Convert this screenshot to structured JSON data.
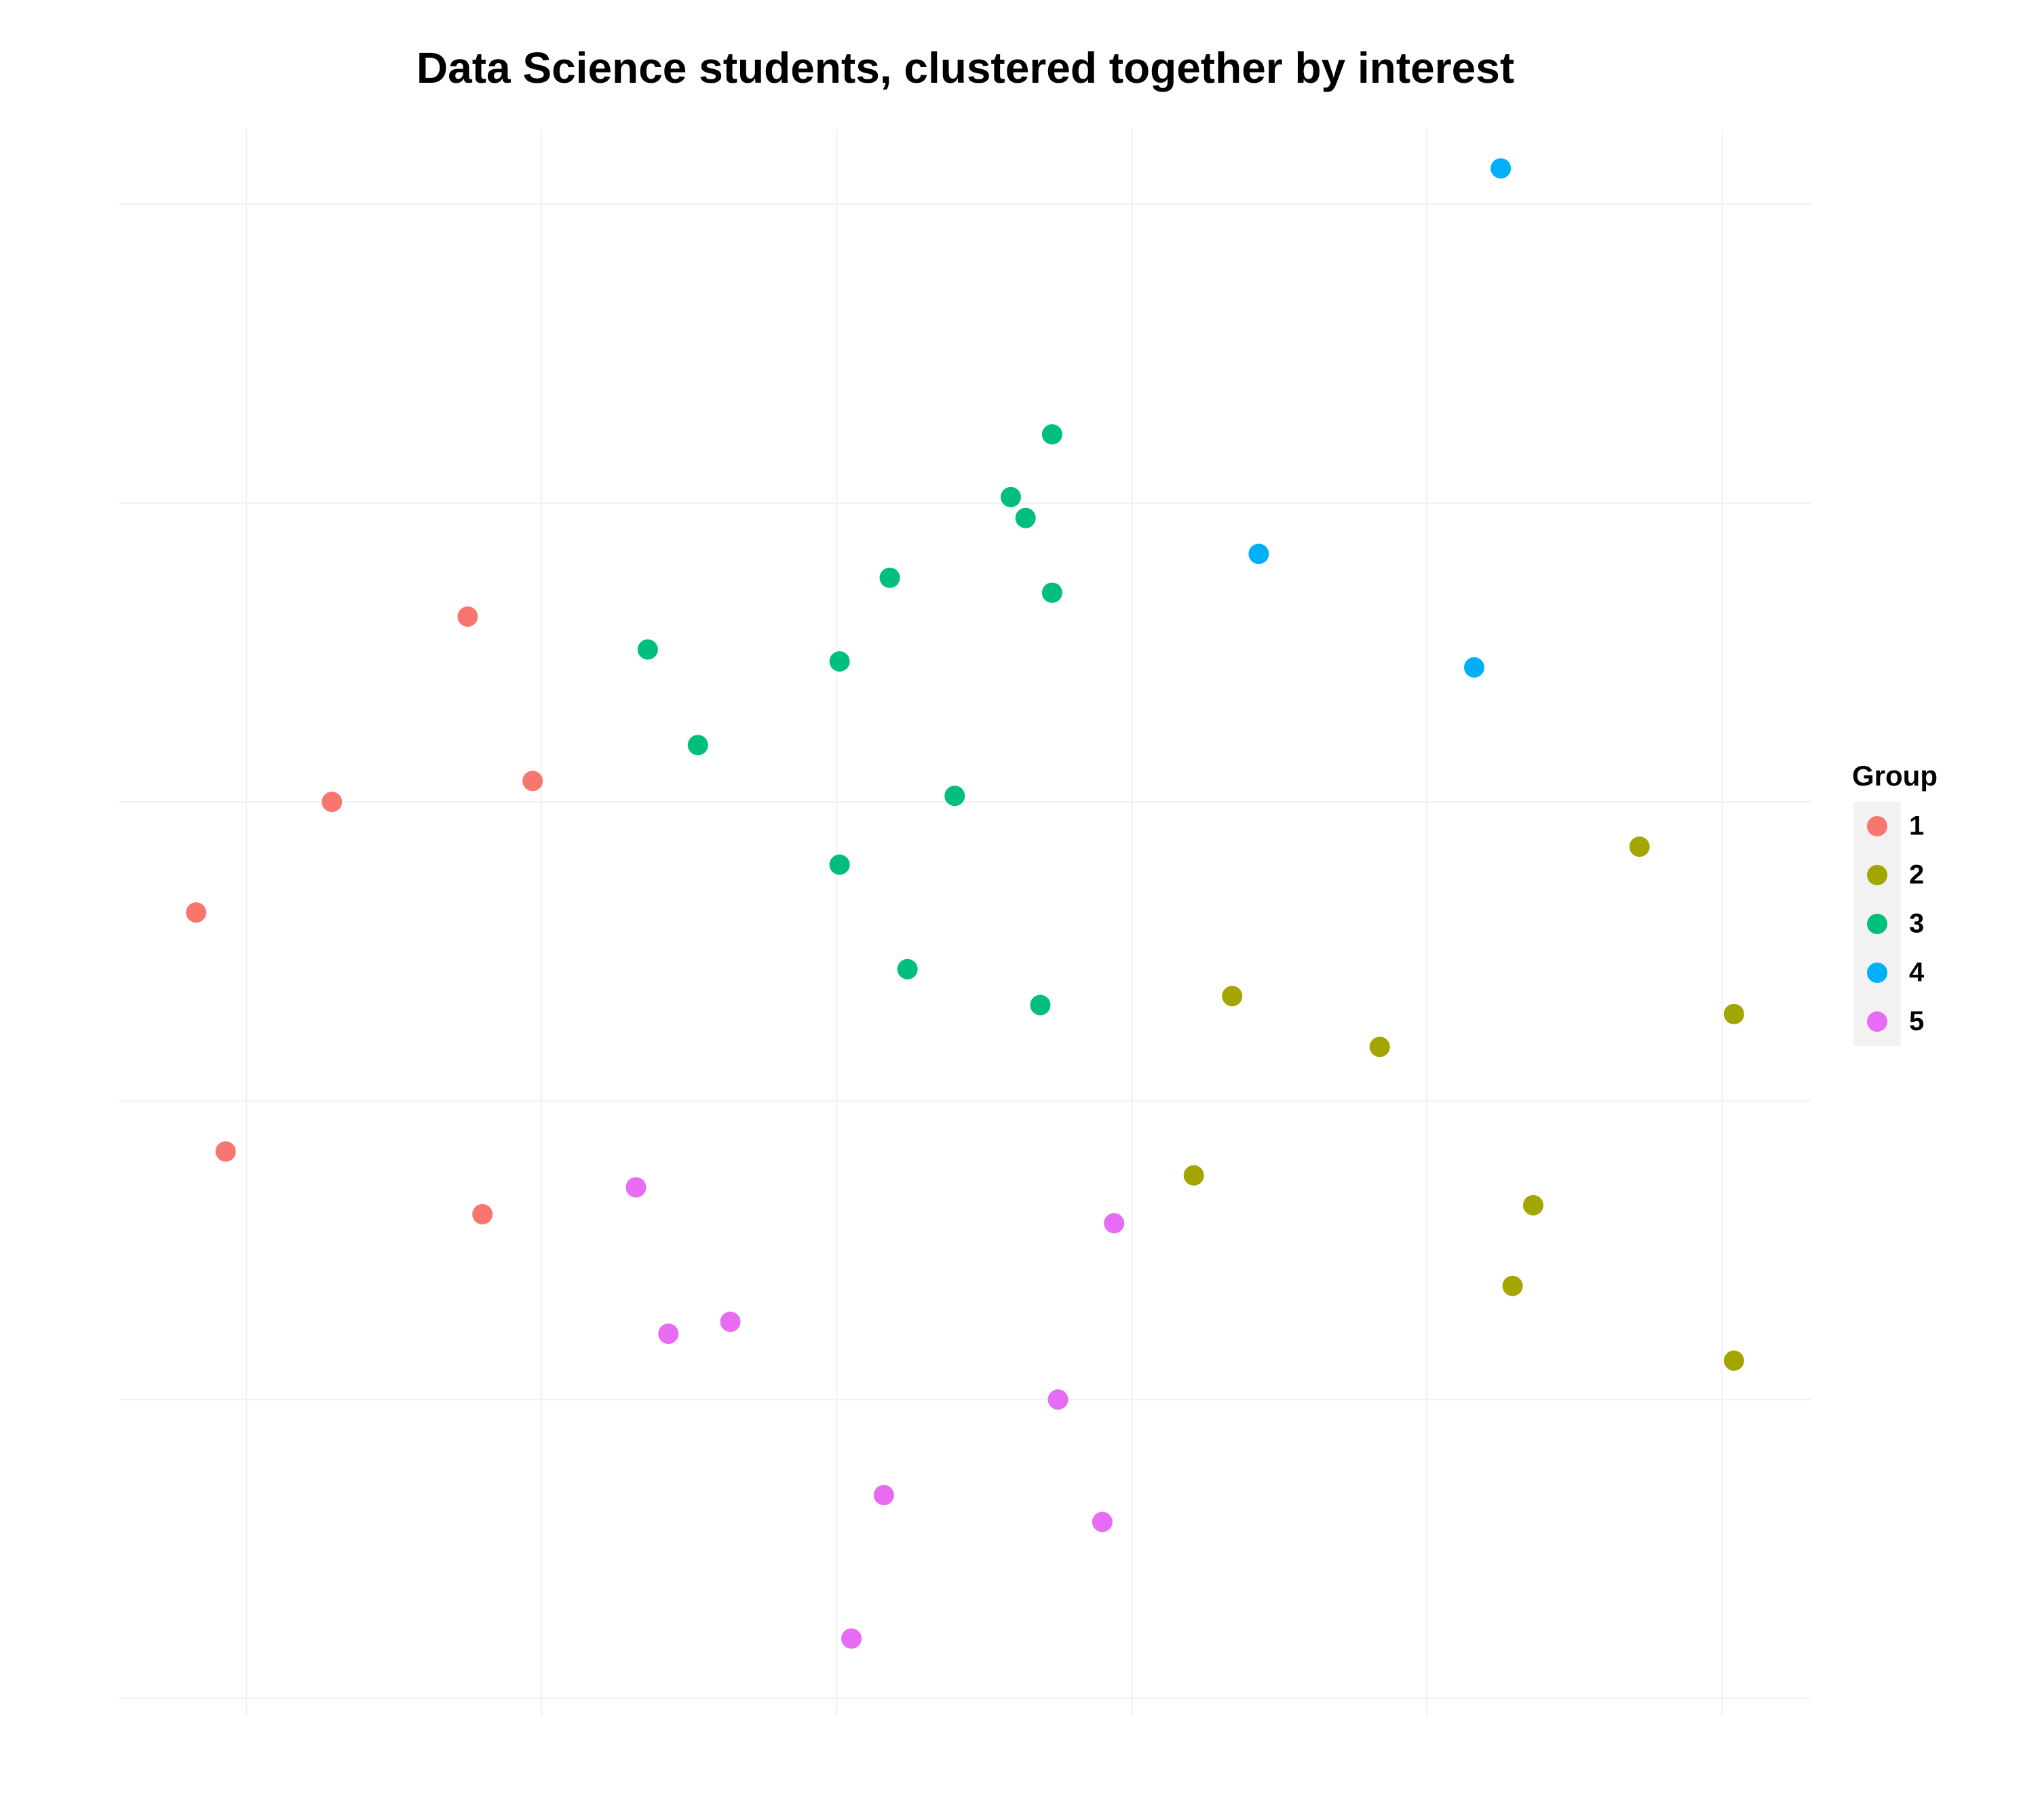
{
  "chart_data": {
    "type": "scatter",
    "title": "Data Science students, clustered together by interest",
    "legend_title": "Group",
    "legend": "right",
    "grid": true,
    "tick_labels": false,
    "xlim": [
      -0.43,
      5.3
    ],
    "ylim": [
      -0.06,
      5.25
    ],
    "xticks": [
      0,
      1,
      2,
      3,
      4,
      5
    ],
    "yticks": [
      0,
      1,
      2,
      3,
      4,
      5
    ],
    "series": [
      {
        "name": "1",
        "color": "#F8766D",
        "x": [
          0.75,
          0.29,
          0.97,
          -0.17,
          -0.07,
          0.8
        ],
        "values": [
          3.62,
          3.0,
          3.07,
          2.63,
          1.83,
          1.62
        ]
      },
      {
        "name": "2",
        "color": "#A3A500",
        "x": [
          4.72,
          3.34,
          3.84,
          5.04,
          3.21,
          4.36,
          4.29,
          5.04
        ],
        "values": [
          2.85,
          2.35,
          2.18,
          2.29,
          1.75,
          1.65,
          1.38,
          1.13
        ]
      },
      {
        "name": "3",
        "color": "#00BF7D",
        "x": [
          2.73,
          2.59,
          2.64,
          2.18,
          2.73,
          1.36,
          2.01,
          1.53,
          2.4,
          2.01,
          2.24,
          2.69
        ],
        "values": [
          4.23,
          4.02,
          3.95,
          3.75,
          3.7,
          3.51,
          3.47,
          3.19,
          3.02,
          2.79,
          2.44,
          2.32
        ]
      },
      {
        "name": "4",
        "color": "#00B0F6",
        "x": [
          4.25,
          3.43,
          4.16
        ],
        "values": [
          5.12,
          3.83,
          3.45
        ]
      },
      {
        "name": "5",
        "color": "#E76BF3",
        "x": [
          1.32,
          2.94,
          1.43,
          1.64,
          2.75,
          2.16,
          2.9,
          2.05
        ],
        "values": [
          1.71,
          1.59,
          1.22,
          1.26,
          1.0,
          0.68,
          0.59,
          0.2
        ]
      }
    ]
  }
}
